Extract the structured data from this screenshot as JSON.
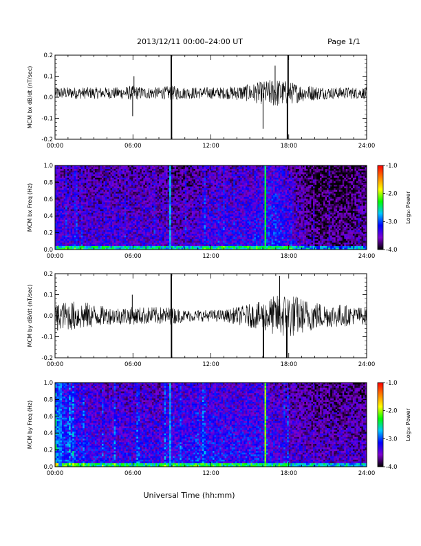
{
  "header": {
    "title": "2013/12/11   00:00–24:00 UT",
    "page": "Page 1/1"
  },
  "footer": {
    "xlabel": "Universal Time (hh:mm)"
  },
  "x_ticks": [
    "00:00",
    "06:00",
    "12:00",
    "18:00",
    "24:00"
  ],
  "colors": {
    "trace": "#000000",
    "background": "#ffffff"
  },
  "chart_data": [
    {
      "type": "line",
      "ylabel": "MCM bx dB/dt (nT/sec)",
      "xlim": [
        0,
        24
      ],
      "ylim": [
        -0.2,
        0.2
      ],
      "yticks": [
        -0.2,
        -0.1,
        0.0,
        0.1,
        0.2
      ],
      "ytick_labels": [
        "-0.2",
        "-0.1",
        "0.0",
        "0.1",
        "0.2"
      ],
      "x_hours": [
        0,
        1,
        2,
        3,
        4,
        5,
        6,
        7,
        8,
        9,
        10,
        11,
        12,
        13,
        14,
        15,
        16,
        17,
        18,
        19,
        20,
        21,
        22,
        23,
        24
      ],
      "baseline": 0.02,
      "amplitude": [
        0.02,
        0.02,
        0.02,
        0.02,
        0.02,
        0.02,
        0.025,
        0.02,
        0.02,
        0.025,
        0.02,
        0.02,
        0.02,
        0.02,
        0.025,
        0.03,
        0.04,
        0.05,
        0.04,
        0.03,
        0.025,
        0.02,
        0.02,
        0.02,
        0.02
      ],
      "spikes": [
        {
          "t": 5.98,
          "v": -0.09
        },
        {
          "t": 6.08,
          "v": 0.1
        },
        {
          "t": 8.95,
          "v": 0.2
        },
        {
          "t": 8.97,
          "v": -0.2
        },
        {
          "t": 16.02,
          "v": -0.15
        },
        {
          "t": 16.95,
          "v": 0.15
        },
        {
          "t": 17.9,
          "v": -0.2
        },
        {
          "t": 17.95,
          "v": 0.2
        }
      ]
    },
    {
      "type": "heatmap",
      "ylabel": "MCM bx Freq (Hz)",
      "xlim": [
        0,
        24
      ],
      "ylim": [
        0.0,
        1.0
      ],
      "yticks": [
        0.0,
        0.2,
        0.4,
        0.6,
        0.8,
        1.0
      ],
      "ytick_labels": [
        "0.0",
        "0.2",
        "0.4",
        "0.6",
        "0.8",
        "1.0"
      ],
      "colorbar": {
        "label": "Log₁₀ Power",
        "range": [
          -4.0,
          -1.0
        ],
        "ticks": [
          "-1.0",
          "-2.0",
          "-3.0",
          "-4.0"
        ],
        "stops": [
          "#000000",
          "#7f00d0",
          "#0000ff",
          "#00c8ff",
          "#00ff00",
          "#ffff00",
          "#ff8000",
          "#ff0000"
        ]
      },
      "x_hours": [
        0,
        2,
        4,
        6,
        8,
        10,
        12,
        14,
        16,
        17,
        18,
        20,
        22,
        24
      ],
      "level": [
        -3.3,
        -3.4,
        -3.4,
        -3.4,
        -3.4,
        -3.5,
        -3.3,
        -3.3,
        -3.2,
        -3.1,
        -3.3,
        -3.7,
        -3.7,
        -3.6
      ],
      "bright_lines": [
        {
          "t": 8.9,
          "level": -2.8
        },
        {
          "t": 16.15,
          "level": -2.1
        },
        {
          "t": 16.25,
          "level": -2.4
        }
      ]
    },
    {
      "type": "line",
      "ylabel": "MCM by dB/dt (nT/sec)",
      "xlim": [
        0,
        24
      ],
      "ylim": [
        -0.2,
        0.2
      ],
      "yticks": [
        -0.2,
        -0.1,
        0.0,
        0.1,
        0.2
      ],
      "ytick_labels": [
        "-0.2",
        "-0.1",
        "0.0",
        "0.1",
        "0.2"
      ],
      "x_hours": [
        0,
        1,
        2,
        3,
        4,
        5,
        6,
        7,
        8,
        9,
        10,
        11,
        12,
        13,
        14,
        15,
        16,
        17,
        18,
        19,
        20,
        21,
        22,
        23,
        24
      ],
      "baseline": 0.0,
      "amplitude": [
        0.04,
        0.05,
        0.05,
        0.04,
        0.03,
        0.03,
        0.03,
        0.03,
        0.03,
        0.03,
        0.02,
        0.02,
        0.02,
        0.02,
        0.03,
        0.04,
        0.05,
        0.07,
        0.08,
        0.06,
        0.05,
        0.04,
        0.04,
        0.03,
        0.03
      ],
      "spikes": [
        {
          "t": 0.2,
          "v": -0.07
        },
        {
          "t": 5.95,
          "v": 0.1
        },
        {
          "t": 8.95,
          "v": 0.2
        },
        {
          "t": 8.97,
          "v": -0.2
        },
        {
          "t": 16.05,
          "v": -0.2
        },
        {
          "t": 17.3,
          "v": 0.19
        },
        {
          "t": 17.85,
          "v": -0.2
        }
      ]
    },
    {
      "type": "heatmap",
      "ylabel": "MCM by Freq (Hz)",
      "xlim": [
        0,
        24
      ],
      "ylim": [
        0.0,
        1.0
      ],
      "yticks": [
        0.0,
        0.2,
        0.4,
        0.6,
        0.8,
        1.0
      ],
      "ytick_labels": [
        "0.0",
        "0.2",
        "0.4",
        "0.6",
        "0.8",
        "1.0"
      ],
      "colorbar": {
        "label": "Log₁₀ Power",
        "range": [
          -4.0,
          -1.0
        ],
        "ticks": [
          "-1.0",
          "-2.0",
          "-3.0",
          "-4.0"
        ],
        "stops": [
          "#000000",
          "#7f00d0",
          "#0000ff",
          "#00c8ff",
          "#00ff00",
          "#ffff00",
          "#ff8000",
          "#ff0000"
        ]
      },
      "x_hours": [
        0,
        1,
        2,
        4,
        6,
        8,
        10,
        12,
        14,
        16,
        18,
        20,
        22,
        24
      ],
      "level": [
        -3.0,
        -3.0,
        -3.2,
        -3.3,
        -3.3,
        -3.3,
        -3.2,
        -3.2,
        -3.2,
        -3.2,
        -3.4,
        -3.5,
        -3.5,
        -3.5
      ],
      "bright_lines": [
        {
          "t": 0.4,
          "level": -2.9
        },
        {
          "t": 8.9,
          "level": -2.8
        },
        {
          "t": 16.15,
          "level": -2.1
        }
      ]
    }
  ]
}
